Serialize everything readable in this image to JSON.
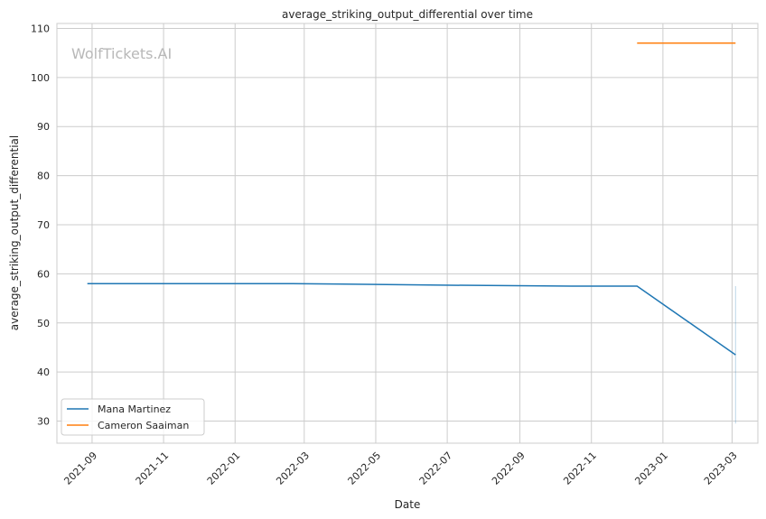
{
  "chart_data": {
    "type": "line",
    "title": "average_striking_output_differential over time",
    "xlabel": "Date",
    "ylabel": "average_striking_output_differential",
    "watermark": "WolfTickets.AI",
    "x_range": [
      "2021-08-02",
      "2023-03-23"
    ],
    "ylim": [
      25.5,
      111
    ],
    "x_ticks": [
      "2021-09",
      "2021-11",
      "2022-01",
      "2022-03",
      "2022-05",
      "2022-07",
      "2022-09",
      "2022-11",
      "2023-01",
      "2023-03"
    ],
    "y_ticks": [
      30,
      40,
      50,
      60,
      70,
      80,
      90,
      100,
      110
    ],
    "grid": true,
    "legend_position": "lower-left",
    "series": [
      {
        "name": "Mana Martinez",
        "color": "#1f77b4",
        "points": [
          {
            "x": "2021-08-28",
            "y": 58.0
          },
          {
            "x": "2022-02-19",
            "y": 58.0
          },
          {
            "x": "2022-06-25",
            "y": 57.7
          },
          {
            "x": "2022-10-15",
            "y": 57.5
          },
          {
            "x": "2022-12-10",
            "y": 57.5
          },
          {
            "x": "2023-03-04",
            "y": 43.5
          }
        ]
      },
      {
        "name": "Cameron Saaiman",
        "color": "#ff7f0e",
        "points": [
          {
            "x": "2022-12-10",
            "y": 107.0
          },
          {
            "x": "2023-03-04",
            "y": 107.0
          }
        ]
      }
    ],
    "band": {
      "series": "Mana Martinez",
      "x": "2023-03-04",
      "y_low": 29.5,
      "y_high": 57.5
    }
  }
}
